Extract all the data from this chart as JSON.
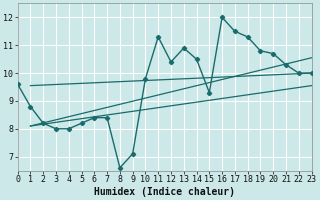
{
  "title": "",
  "xlabel": "Humidex (Indice chaleur)",
  "ylabel": "",
  "x_values": [
    0,
    1,
    2,
    3,
    4,
    5,
    6,
    7,
    8,
    9,
    10,
    11,
    12,
    13,
    14,
    15,
    16,
    17,
    18,
    19,
    20,
    21,
    22,
    23
  ],
  "y_values": [
    9.6,
    8.8,
    8.2,
    8.0,
    8.0,
    8.2,
    8.4,
    8.4,
    6.6,
    7.1,
    9.8,
    11.3,
    10.4,
    10.9,
    10.5,
    9.3,
    12.0,
    11.5,
    11.3,
    10.8,
    10.7,
    10.3,
    10.0,
    10.0
  ],
  "line_color": "#1a6b6b",
  "marker": "D",
  "marker_size": 2.2,
  "line_width": 1.0,
  "bg_color": "#cce8e8",
  "grid_color": "#b0d4d4",
  "xlim": [
    0,
    23
  ],
  "ylim": [
    6.5,
    12.5
  ],
  "yticks": [
    7,
    8,
    9,
    10,
    11,
    12
  ],
  "xticks": [
    0,
    1,
    2,
    3,
    4,
    5,
    6,
    7,
    8,
    9,
    10,
    11,
    12,
    13,
    14,
    15,
    16,
    17,
    18,
    19,
    20,
    21,
    22,
    23
  ],
  "regression_lines": [
    {
      "x_start": 1,
      "y_start": 9.55,
      "x_end": 23,
      "y_end": 10.0
    },
    {
      "x_start": 1,
      "y_start": 8.1,
      "x_end": 23,
      "y_end": 10.55
    },
    {
      "x_start": 1,
      "y_start": 8.1,
      "x_end": 23,
      "y_end": 9.55
    }
  ],
  "tick_fontsize": 6,
  "xlabel_fontsize": 7
}
